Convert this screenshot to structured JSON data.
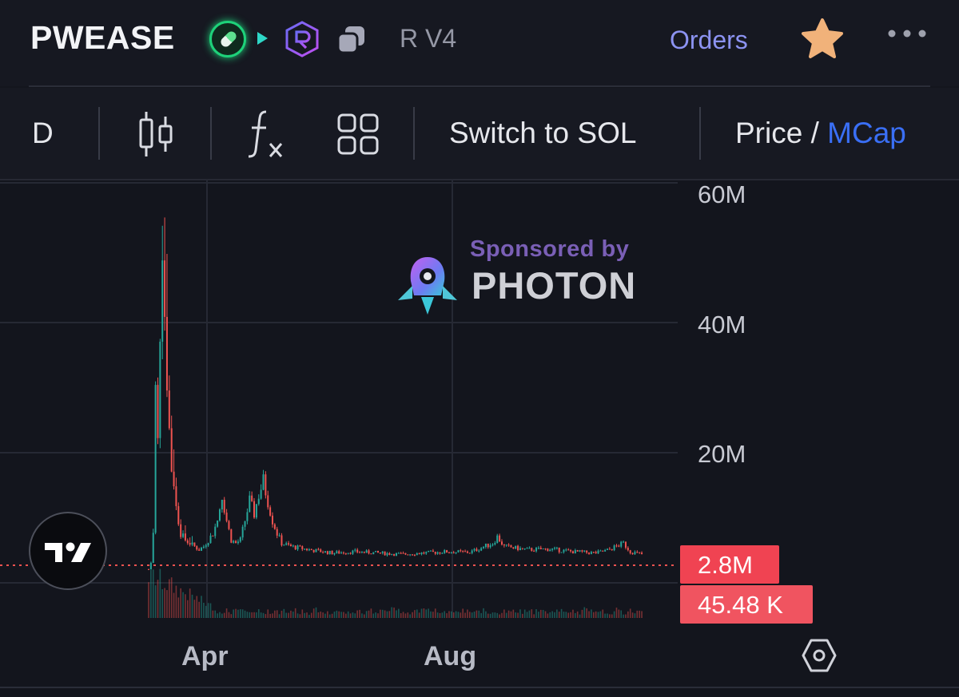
{
  "header": {
    "token_name": "PWEASE",
    "pool_label": "R V4",
    "orders_label": "Orders",
    "icons": [
      "pill-icon",
      "play-icon",
      "raydium-icon",
      "copy-icon",
      "star-icon",
      "more-icon"
    ],
    "star_color": "#f1b27a",
    "accent": "#8c93f2"
  },
  "toolbar": {
    "interval_label": "D",
    "switch_label": "Switch to SOL",
    "price_label": "Price",
    "separator": " / ",
    "mcap_label": "MCap",
    "active_color": "#3a6ff5"
  },
  "chart": {
    "y_labels": [
      "60M",
      "40M",
      "20M"
    ],
    "x_labels": [
      "Apr",
      "Aug"
    ],
    "price_tag": "2.8M",
    "volume_tag": "45.48 K",
    "up_color": "#26a69a",
    "down_color": "#ef5350"
  },
  "sponsor": {
    "by_label": "Sponsored by",
    "name": "PHOTON"
  },
  "chart_data": {
    "type": "candlestick",
    "y_unit": "market cap (USD)",
    "ylim": [
      0,
      62000000
    ],
    "y_ticks": [
      20000000,
      40000000,
      60000000
    ],
    "x_ticks": [
      "Apr",
      "Aug"
    ],
    "last_value": 2800000,
    "last_volume": "45.48 K",
    "profile": [
      [
        0,
        0.5
      ],
      [
        1,
        1.5
      ],
      [
        2,
        6
      ],
      [
        3,
        28
      ],
      [
        4,
        20
      ],
      [
        5,
        38
      ],
      [
        6,
        52
      ],
      [
        7,
        40
      ],
      [
        8,
        30
      ],
      [
        9,
        22
      ],
      [
        10,
        16
      ],
      [
        11,
        14
      ],
      [
        12,
        10
      ],
      [
        13,
        8
      ],
      [
        14,
        6
      ],
      [
        16,
        5
      ],
      [
        18,
        4.5
      ],
      [
        20,
        4
      ],
      [
        22,
        3.5
      ],
      [
        24,
        4
      ],
      [
        26,
        5
      ],
      [
        28,
        6
      ],
      [
        30,
        8
      ],
      [
        32,
        12
      ],
      [
        34,
        8
      ],
      [
        36,
        5
      ],
      [
        38,
        4.5
      ],
      [
        40,
        5
      ],
      [
        42,
        8
      ],
      [
        44,
        11
      ],
      [
        46,
        9
      ],
      [
        48,
        12
      ],
      [
        50,
        14
      ],
      [
        52,
        11
      ],
      [
        54,
        8
      ],
      [
        56,
        6
      ],
      [
        58,
        4.5
      ],
      [
        62,
        4
      ],
      [
        70,
        3.5
      ],
      [
        80,
        3
      ],
      [
        90,
        3.2
      ],
      [
        100,
        3
      ],
      [
        110,
        2.8
      ],
      [
        120,
        3
      ],
      [
        130,
        3.2
      ],
      [
        140,
        3.1
      ],
      [
        150,
        4.5
      ],
      [
        152,
        5.5
      ],
      [
        155,
        4
      ],
      [
        165,
        3.5
      ],
      [
        175,
        3.6
      ],
      [
        185,
        3.2
      ],
      [
        195,
        3
      ],
      [
        200,
        3.4
      ],
      [
        207,
        4.5
      ],
      [
        210,
        3.2
      ],
      [
        215,
        2.8
      ]
    ],
    "profile_units": "[day index, value in millions]"
  }
}
